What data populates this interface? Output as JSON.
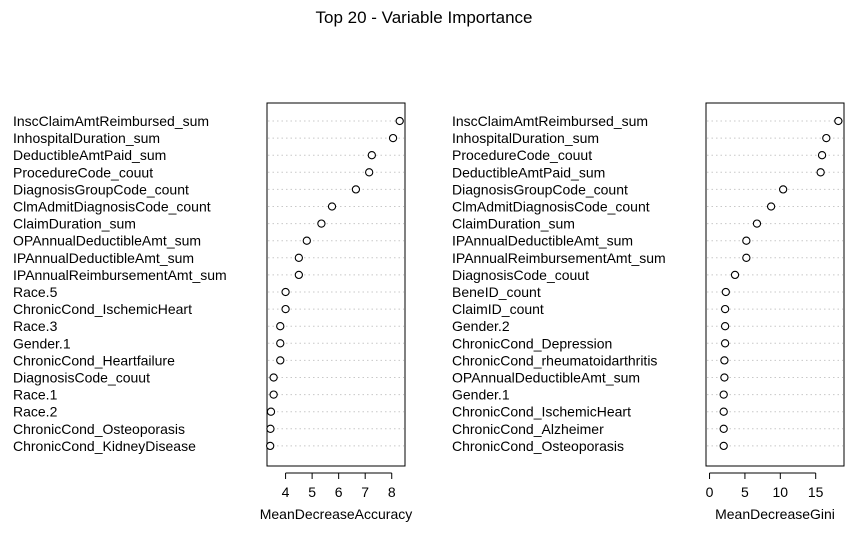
{
  "title": "Top 20 - Variable Importance",
  "chart_data": [
    {
      "type": "scatter",
      "title": "Top 20 - Variable Importance",
      "xlabel": "MeanDecreaseAccuracy",
      "ylabel": "",
      "xlim": [
        3.3,
        8.5
      ],
      "xticks": [
        4,
        5,
        6,
        7,
        8
      ],
      "categories": [
        "InscClaimAmtReimbursed_sum",
        "InhospitalDuration_sum",
        "DeductibleAmtPaid_sum",
        "ProcedureCode_couut",
        "DiagnosisGroupCode_count",
        "ClmAdmitDiagnosisCode_count",
        "ClaimDuration_sum",
        "OPAnnualDeductibleAmt_sum",
        "IPAnnualDeductibleAmt_sum",
        "IPAnnualReimbursementAmt_sum",
        "Race.5",
        "ChronicCond_IschemicHeart",
        "Race.3",
        "Gender.1",
        "ChronicCond_Heartfailure",
        "DiagnosisCode_couut",
        "Race.1",
        "Race.2",
        "ChronicCond_Osteoporasis",
        "ChronicCond_KidneyDisease"
      ],
      "values": [
        8.3,
        8.05,
        7.25,
        7.15,
        6.65,
        5.75,
        5.35,
        4.8,
        4.5,
        4.5,
        4.0,
        4.0,
        3.8,
        3.8,
        3.8,
        3.55,
        3.55,
        3.45,
        3.43,
        3.42
      ]
    },
    {
      "type": "scatter",
      "title": "",
      "xlabel": "MeanDecreaseGini",
      "ylabel": "",
      "xlim": [
        -0.5,
        19
      ],
      "xticks": [
        0,
        5,
        10,
        15
      ],
      "categories": [
        "InscClaimAmtReimbursed_sum",
        "InhospitalDuration_sum",
        "ProcedureCode_couut",
        "DeductibleAmtPaid_sum",
        "DiagnosisGroupCode_count",
        "ClmAdmitDiagnosisCode_count",
        "ClaimDuration_sum",
        "IPAnnualDeductibleAmt_sum",
        "IPAnnualReimbursementAmt_sum",
        "DiagnosisCode_couut",
        "BeneID_count",
        "ClaimID_count",
        "Gender.2",
        "ChronicCond_Depression",
        "ChronicCond_rheumatoidarthritis",
        "OPAnnualDeductibleAmt_sum",
        "Gender.1",
        "ChronicCond_IschemicHeart",
        "ChronicCond_Alzheimer",
        "ChronicCond_Osteoporasis"
      ],
      "values": [
        18.2,
        16.5,
        15.9,
        15.7,
        10.4,
        8.7,
        6.7,
        5.2,
        5.2,
        3.6,
        2.3,
        2.2,
        2.2,
        2.2,
        2.1,
        2.1,
        2.0,
        2.0,
        2.0,
        2.0
      ]
    }
  ]
}
